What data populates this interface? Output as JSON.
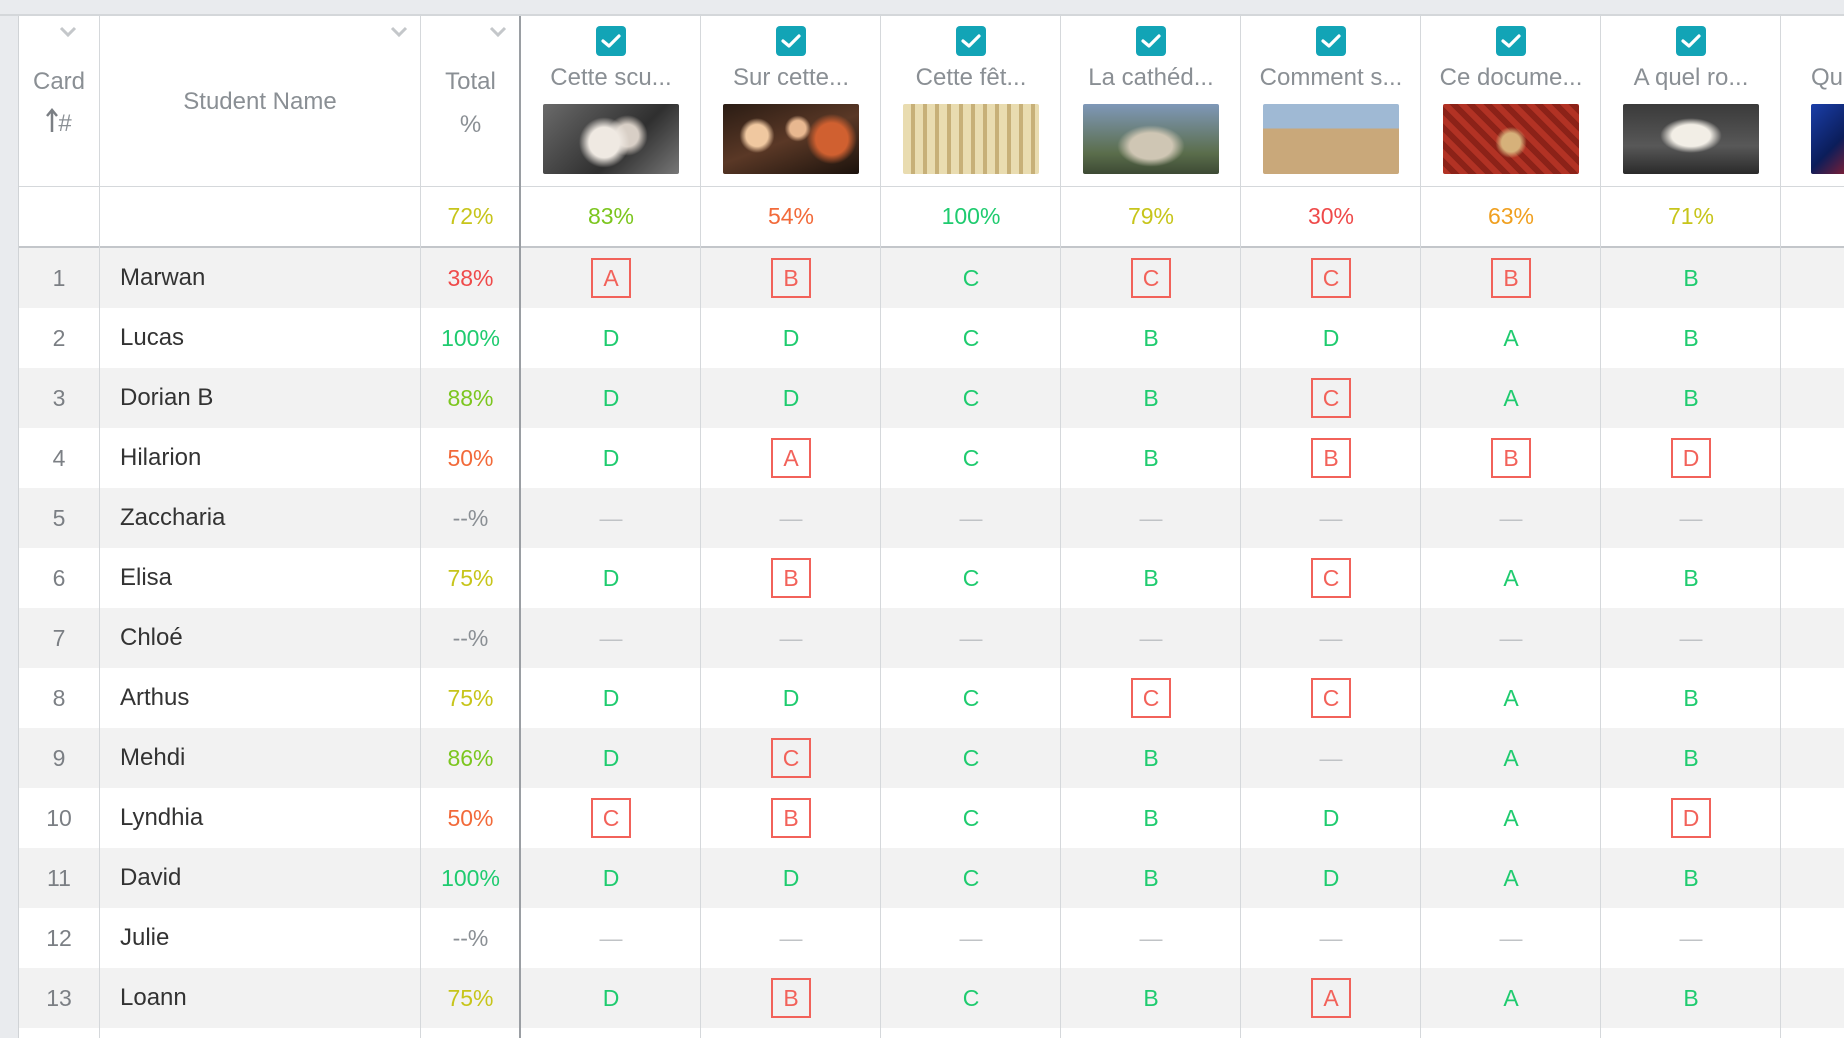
{
  "colors": {
    "teal_check": "#12a4b6",
    "right": "#1fcb6f",
    "wrong": "#f2625a",
    "pct_high": "#1fcb6f",
    "pct_good": "#7cc61f",
    "pct_mid": "#c7c51b",
    "pct_mid_low": "#f0a020",
    "pct_low": "#f26a3a",
    "pct_bad": "#ef4a4a",
    "none": "#8a8f94"
  },
  "headers": {
    "card_line1": "Card",
    "card_line2": "#",
    "card_sort_icon": "arrow-up-icon",
    "student_name": "Student Name",
    "total_line1": "Total",
    "total_line2": "%"
  },
  "averages": {
    "total": "72%",
    "questions": [
      "83%",
      "54%",
      "100%",
      "79%",
      "30%",
      "63%",
      "71%"
    ]
  },
  "questions": [
    {
      "title": "Cette scu...",
      "thumb": "sculpture"
    },
    {
      "title": "Sur cette...",
      "thumb": "painting"
    },
    {
      "title": "Cette fêt...",
      "thumb": "festival"
    },
    {
      "title": "La cathéd...",
      "thumb": "cathedral"
    },
    {
      "title": "Comment s...",
      "thumb": "mosque"
    },
    {
      "title": "Ce docume...",
      "thumb": "tapestry"
    },
    {
      "title": "A quel ro...",
      "thumb": "fountain"
    },
    {
      "title": "Qu",
      "thumb": "stained-glass"
    }
  ],
  "students": [
    {
      "num": "1",
      "name": "Marwan",
      "total": "38%",
      "answers": [
        [
          "A",
          "wrong"
        ],
        [
          "B",
          "wrong"
        ],
        [
          "C",
          "right"
        ],
        [
          "C",
          "wrong"
        ],
        [
          "C",
          "wrong"
        ],
        [
          "B",
          "wrong"
        ],
        [
          "B",
          "right"
        ]
      ]
    },
    {
      "num": "2",
      "name": "Lucas",
      "total": "100%",
      "answers": [
        [
          "D",
          "right"
        ],
        [
          "D",
          "right"
        ],
        [
          "C",
          "right"
        ],
        [
          "B",
          "right"
        ],
        [
          "D",
          "right"
        ],
        [
          "A",
          "right"
        ],
        [
          "B",
          "right"
        ]
      ]
    },
    {
      "num": "3",
      "name": "Dorian B",
      "total": "88%",
      "answers": [
        [
          "D",
          "right"
        ],
        [
          "D",
          "right"
        ],
        [
          "C",
          "right"
        ],
        [
          "B",
          "right"
        ],
        [
          "C",
          "wrong"
        ],
        [
          "A",
          "right"
        ],
        [
          "B",
          "right"
        ]
      ]
    },
    {
      "num": "4",
      "name": "Hilarion",
      "total": "50%",
      "answers": [
        [
          "D",
          "right"
        ],
        [
          "A",
          "wrong"
        ],
        [
          "C",
          "right"
        ],
        [
          "B",
          "right"
        ],
        [
          "B",
          "wrong"
        ],
        [
          "B",
          "wrong"
        ],
        [
          "D",
          "wrong"
        ]
      ]
    },
    {
      "num": "5",
      "name": "Zaccharia",
      "total": "--%",
      "answers": [
        [
          "—",
          "none"
        ],
        [
          "—",
          "none"
        ],
        [
          "—",
          "none"
        ],
        [
          "—",
          "none"
        ],
        [
          "—",
          "none"
        ],
        [
          "—",
          "none"
        ],
        [
          "—",
          "none"
        ]
      ]
    },
    {
      "num": "6",
      "name": "Elisa",
      "total": "75%",
      "answers": [
        [
          "D",
          "right"
        ],
        [
          "B",
          "wrong"
        ],
        [
          "C",
          "right"
        ],
        [
          "B",
          "right"
        ],
        [
          "C",
          "wrong"
        ],
        [
          "A",
          "right"
        ],
        [
          "B",
          "right"
        ]
      ]
    },
    {
      "num": "7",
      "name": "Chloé",
      "total": "--%",
      "answers": [
        [
          "—",
          "none"
        ],
        [
          "—",
          "none"
        ],
        [
          "—",
          "none"
        ],
        [
          "—",
          "none"
        ],
        [
          "—",
          "none"
        ],
        [
          "—",
          "none"
        ],
        [
          "—",
          "none"
        ]
      ]
    },
    {
      "num": "8",
      "name": "Arthus",
      "total": "75%",
      "answers": [
        [
          "D",
          "right"
        ],
        [
          "D",
          "right"
        ],
        [
          "C",
          "right"
        ],
        [
          "C",
          "wrong"
        ],
        [
          "C",
          "wrong"
        ],
        [
          "A",
          "right"
        ],
        [
          "B",
          "right"
        ]
      ]
    },
    {
      "num": "9",
      "name": "Mehdi",
      "total": "86%",
      "answers": [
        [
          "D",
          "right"
        ],
        [
          "C",
          "wrong"
        ],
        [
          "C",
          "right"
        ],
        [
          "B",
          "right"
        ],
        [
          "—",
          "none"
        ],
        [
          "A",
          "right"
        ],
        [
          "B",
          "right"
        ]
      ]
    },
    {
      "num": "10",
      "name": "Lyndhia",
      "total": "50%",
      "answers": [
        [
          "C",
          "wrong"
        ],
        [
          "B",
          "wrong"
        ],
        [
          "C",
          "right"
        ],
        [
          "B",
          "right"
        ],
        [
          "D",
          "right"
        ],
        [
          "A",
          "right"
        ],
        [
          "D",
          "wrong"
        ]
      ]
    },
    {
      "num": "11",
      "name": "David",
      "total": "100%",
      "answers": [
        [
          "D",
          "right"
        ],
        [
          "D",
          "right"
        ],
        [
          "C",
          "right"
        ],
        [
          "B",
          "right"
        ],
        [
          "D",
          "right"
        ],
        [
          "A",
          "right"
        ],
        [
          "B",
          "right"
        ]
      ]
    },
    {
      "num": "12",
      "name": "Julie",
      "total": "--%",
      "answers": [
        [
          "—",
          "none"
        ],
        [
          "—",
          "none"
        ],
        [
          "—",
          "none"
        ],
        [
          "—",
          "none"
        ],
        [
          "—",
          "none"
        ],
        [
          "—",
          "none"
        ],
        [
          "—",
          "none"
        ]
      ]
    },
    {
      "num": "13",
      "name": "Loann",
      "total": "75%",
      "answers": [
        [
          "D",
          "right"
        ],
        [
          "B",
          "wrong"
        ],
        [
          "C",
          "right"
        ],
        [
          "B",
          "right"
        ],
        [
          "A",
          "wrong"
        ],
        [
          "A",
          "right"
        ],
        [
          "B",
          "right"
        ]
      ]
    }
  ]
}
